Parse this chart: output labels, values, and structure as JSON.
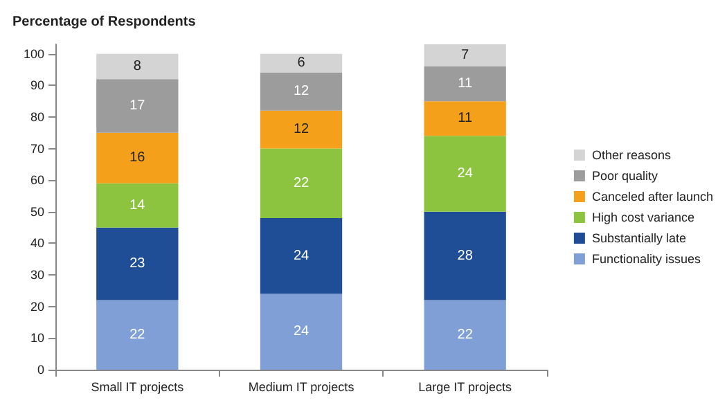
{
  "chart_data": {
    "type": "bar",
    "title": "Percentage of Respondents",
    "categories": [
      "Small IT projects",
      "Medium IT projects",
      "Large IT projects"
    ],
    "stacked": true,
    "data_labels": true,
    "legend": "right",
    "grid": false,
    "ylim": [
      0,
      103
    ],
    "yticks": [
      0,
      10,
      20,
      30,
      40,
      50,
      60,
      70,
      80,
      90,
      100
    ],
    "series": [
      {
        "name": "Functionality issues",
        "color": "#7f9fd6",
        "values": [
          22,
          24,
          22
        ]
      },
      {
        "name": "Substantially late",
        "color": "#1f4e96",
        "values": [
          23,
          24,
          28
        ]
      },
      {
        "name": "High cost variance",
        "color": "#8cc43f",
        "values": [
          14,
          22,
          24
        ]
      },
      {
        "name": "Canceled after launch",
        "color": "#f5a01a",
        "values": [
          16,
          12,
          11
        ]
      },
      {
        "name": "Poor quality",
        "color": "#9c9c9c",
        "values": [
          17,
          12,
          11
        ]
      },
      {
        "name": "Other reasons",
        "color": "#d4d4d4",
        "values": [
          8,
          6,
          7
        ]
      }
    ]
  }
}
